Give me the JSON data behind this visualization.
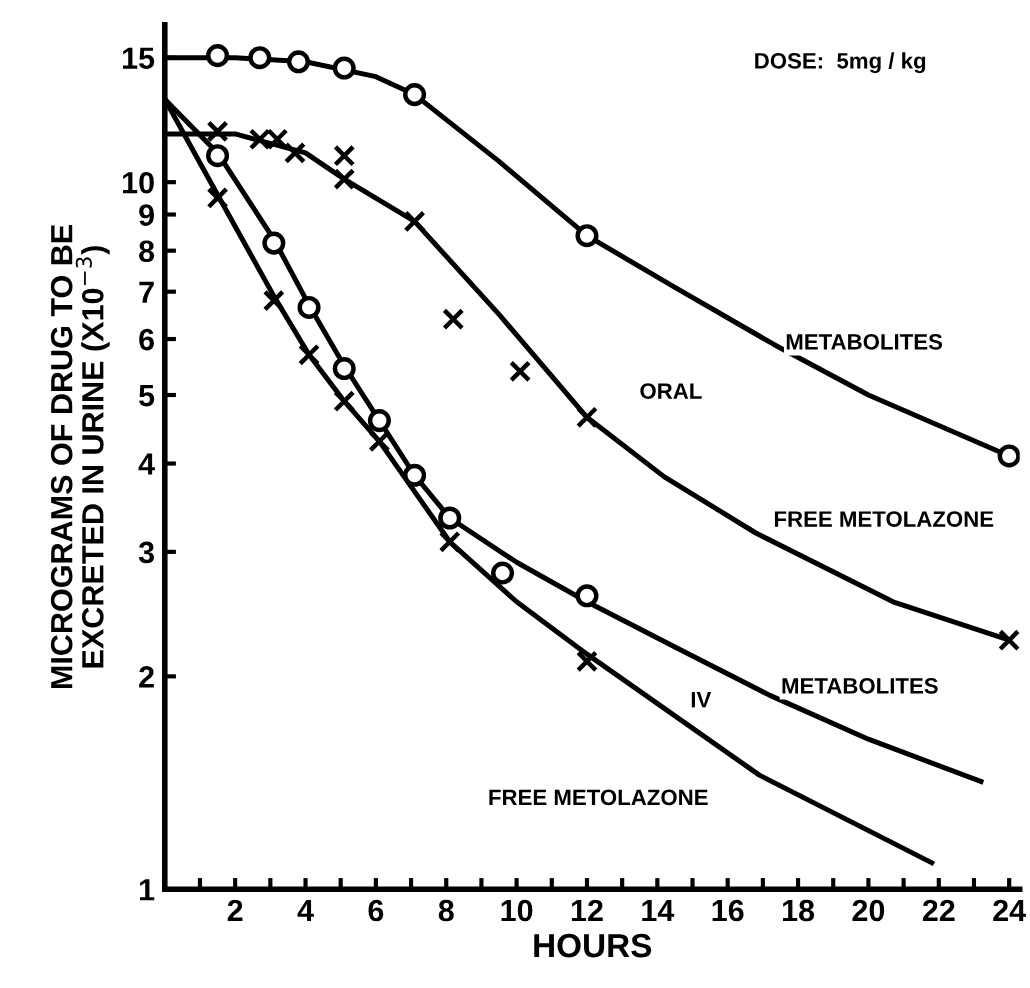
{
  "chart_data": {
    "type": "scatter",
    "xlabel": "HOURS",
    "ylabel": "MICROGRAMS OF DRUG TO BE\nEXCRETED IN URINE (X10$^{−3}$)",
    "log": "y",
    "xlim": [
      0,
      24.3
    ],
    "ylim": [
      1,
      16.7
    ],
    "xticks": [
      {
        "value": 1,
        "label": null
      },
      2,
      {
        "value": 3,
        "label": null
      },
      4,
      {
        "value": 5,
        "label": null
      },
      6,
      {
        "value": 7,
        "label": null
      },
      8,
      {
        "value": 9,
        "label": null
      },
      10,
      {
        "value": 11,
        "label": null
      },
      12,
      {
        "value": 13,
        "label": null
      },
      14,
      {
        "value": 15,
        "label": null
      },
      16,
      {
        "value": 17,
        "label": null
      },
      18,
      {
        "value": 19,
        "label": null
      },
      20,
      {
        "value": 21,
        "label": null
      },
      22,
      {
        "value": 23,
        "label": null
      },
      24
    ],
    "yticks": [
      1,
      2,
      3,
      4,
      5,
      6,
      7,
      8,
      9,
      10,
      15
    ],
    "grid": false,
    "series": [
      {
        "marker": "circle",
        "color": "#000000",
        "x": [
          1.5,
          2.7,
          3.8,
          5.1,
          7.1,
          12,
          24
        ],
        "values": [
          15.1,
          15,
          14.8,
          14.5,
          13.3,
          8.4,
          4.1
        ]
      },
      {
        "marker": "cross",
        "color": "#000000",
        "x": [
          1.5,
          2.7,
          3.2,
          3.7,
          5.1,
          5.1,
          7.1,
          8.2,
          10.1,
          12,
          24
        ],
        "values": [
          11.8,
          11.5,
          11.5,
          11,
          10.9,
          10.1,
          8.8,
          6.4,
          5.4,
          4.65,
          2.25
        ]
      },
      {
        "marker": "circle",
        "color": "#000000",
        "x": [
          1.5,
          3.1,
          4.1,
          5.1,
          6.1,
          7.1,
          8.1,
          9.6,
          12
        ],
        "values": [
          10.9,
          8.2,
          6.65,
          5.45,
          4.6,
          3.85,
          3.35,
          2.8,
          2.6
        ]
      },
      {
        "marker": "cross",
        "color": "#000000",
        "x": [
          1.5,
          3.1,
          4.1,
          5.1,
          6.1,
          8.1,
          12
        ],
        "values": [
          9.5,
          6.8,
          5.7,
          4.9,
          4.3,
          3.1,
          2.1
        ]
      },
      {
        "type": "line",
        "line_style": "solid",
        "color": "#000000",
        "x": [
          0,
          2,
          4,
          6,
          7.1,
          9.5,
          12,
          14.5,
          17.3,
          20,
          24
        ],
        "values": [
          15,
          15,
          14.8,
          14.1,
          13.3,
          10.7,
          8.4,
          7.1,
          5.9,
          5,
          4.1
        ]
      },
      {
        "type": "line",
        "line_style": "solid",
        "color": "#000000",
        "x": [
          0,
          2,
          4,
          5.1,
          7.1,
          9.5,
          12,
          14.2,
          16.8,
          20.7,
          24
        ],
        "values": [
          11.7,
          11.7,
          11,
          10.1,
          8.8,
          6.5,
          4.65,
          3.83,
          3.19,
          2.55,
          2.25
        ]
      },
      {
        "type": "line",
        "line_style": "solid",
        "color": "#000000",
        "x": [
          0,
          1.5,
          3.1,
          4.1,
          5.1,
          6.1,
          7.1,
          8.1,
          10,
          12,
          14.5,
          17.2,
          20,
          23.2
        ],
        "values": [
          13.1,
          11,
          8.3,
          6.7,
          5.5,
          4.6,
          3.85,
          3.35,
          2.9,
          2.55,
          2.2,
          1.88,
          1.63,
          1.42
        ]
      },
      {
        "type": "line",
        "line_style": "solid",
        "color": "#000000",
        "x": [
          0,
          1.5,
          3.1,
          4.1,
          5.1,
          6.1,
          8.1,
          10,
          12,
          16.9,
          21.8
        ],
        "values": [
          13.1,
          9.6,
          6.9,
          5.7,
          4.9,
          4.3,
          3.1,
          2.55,
          2.15,
          1.45,
          1.09
        ]
      }
    ],
    "annotations": [
      "DOSE:  5mg / kg",
      "METABOLITES",
      "ORAL",
      "FREE METOLAZONE",
      "METABOLITES",
      "IV",
      "FREE METOLAZONE"
    ]
  }
}
